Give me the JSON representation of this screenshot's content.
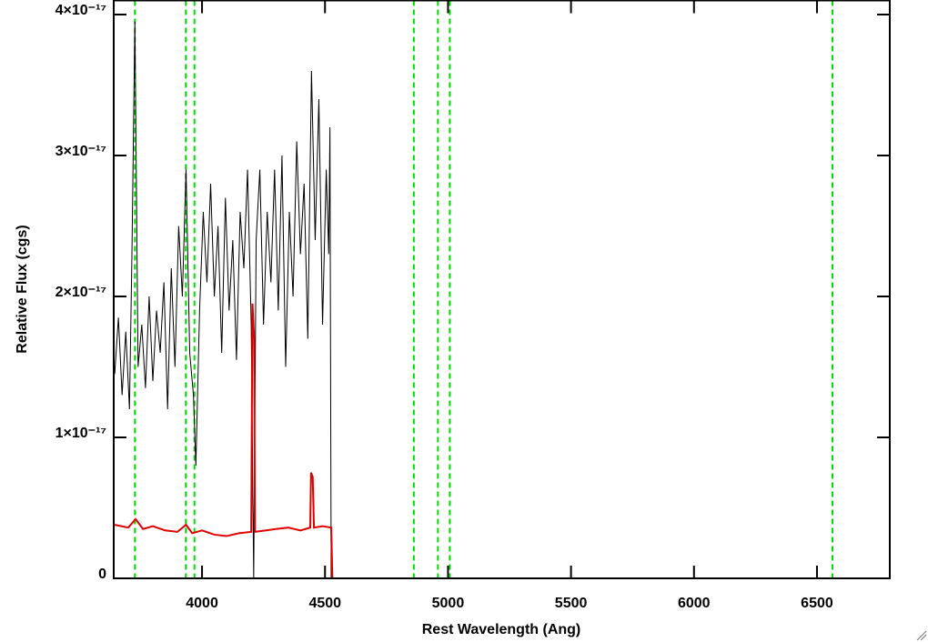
{
  "chart_data": {
    "type": "line",
    "xlabel": "Rest Wavelength (Ang)",
    "ylabel": "Relative Flux (cgs)",
    "xlim": [
      3641,
      6796
    ],
    "ylim": [
      0,
      4.1e-17
    ],
    "xticks": [
      4000,
      4500,
      5000,
      5500,
      6000,
      6500
    ],
    "yticks": [
      0,
      {
        "value": 1e-17,
        "label": "1×10⁻¹⁷"
      },
      {
        "value": 2e-17,
        "label": "2×10⁻¹⁷"
      },
      {
        "value": 3e-17,
        "label": "3×10⁻¹⁷"
      },
      {
        "value": 4e-17,
        "label": "4×10⁻¹⁷"
      }
    ],
    "reference_lines": {
      "color": "#00e000",
      "values": [
        3727,
        3934,
        3969,
        4861,
        4959,
        5007,
        6563
      ]
    },
    "series": [
      {
        "color": "#000000",
        "x": [
          3645,
          3660,
          3675,
          3690,
          3705,
          3715,
          3727,
          3740,
          3755,
          3770,
          3785,
          3800,
          3815,
          3830,
          3845,
          3860,
          3875,
          3890,
          3905,
          3920,
          3935,
          3950,
          3965,
          3975,
          3990,
          4005,
          4020,
          4035,
          4050,
          4065,
          4080,
          4095,
          4110,
          4125,
          4140,
          4155,
          4170,
          4185,
          4200,
          4210,
          4220,
          4235,
          4250,
          4265,
          4280,
          4295,
          4310,
          4325,
          4340,
          4355,
          4370,
          4385,
          4400,
          4415,
          4430,
          4445,
          4460,
          4475,
          4490,
          4505,
          4515,
          4520,
          4525,
          6796
        ],
        "values": [
          1.45e-17,
          1.85e-17,
          1.3e-17,
          1.75e-17,
          1.2e-17,
          2.3e-17,
          3.95e-17,
          1.5e-17,
          1.8e-17,
          1.35e-17,
          2e-17,
          1.4e-17,
          1.9e-17,
          1.6e-17,
          2.1e-17,
          1.2e-17,
          2.2e-17,
          1.5e-17,
          2.5e-17,
          2e-17,
          2.9e-17,
          1.6e-17,
          1.3e-17,
          8e-18,
          1.9e-17,
          2.6e-17,
          2.1e-17,
          2.8e-17,
          2e-17,
          2.5e-17,
          1.6e-17,
          2.7e-17,
          1.9e-17,
          2.4e-17,
          1.55e-17,
          2.6e-17,
          2.2e-17,
          2.9e-17,
          1.8e-17,
          0,
          2.4e-17,
          2.9e-17,
          1.8e-17,
          2.6e-17,
          2.1e-17,
          2.9e-17,
          1.9e-17,
          3e-17,
          1.5e-17,
          2.6e-17,
          2e-17,
          3.1e-17,
          2.3e-17,
          2.8e-17,
          1.7e-17,
          3.6e-17,
          2.4e-17,
          3.4e-17,
          1.8e-17,
          2.9e-17,
          2.3e-17,
          3.2e-17,
          0,
          0
        ]
      },
      {
        "color": "#e00000",
        "x": [
          3645,
          3700,
          3730,
          3760,
          3800,
          3850,
          3900,
          3935,
          3960,
          4000,
          4050,
          4100,
          4150,
          4200,
          4205,
          4212,
          4215,
          4260,
          4300,
          4350,
          4400,
          4440,
          4443,
          4450,
          4455,
          4490,
          4525,
          4530,
          6796
        ],
        "values": [
          3.8e-18,
          3.6e-18,
          4.2e-18,
          3.5e-18,
          3.7e-18,
          3.4e-18,
          3.3e-18,
          3.8e-18,
          3.2e-18,
          3.4e-18,
          3.1e-18,
          3e-18,
          3.2e-18,
          3.3e-18,
          1.95e-17,
          1.7e-17,
          3.3e-18,
          3.4e-18,
          3.5e-18,
          3.6e-18,
          3.4e-18,
          3.6e-18,
          7.5e-18,
          7.2e-18,
          3.6e-18,
          3.7e-18,
          3.6e-18,
          0,
          0
        ]
      }
    ]
  }
}
